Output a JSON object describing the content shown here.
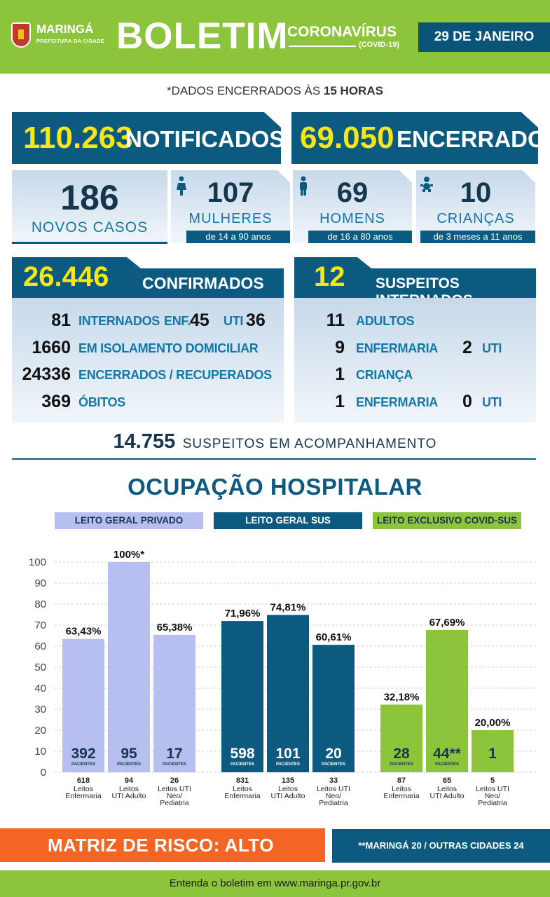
{
  "header": {
    "city": "MARINGÁ",
    "city_sub": "PREFEITURA DA CIDADE",
    "title": "BOLETIM",
    "corona": "CORONAVÍRUS",
    "covid": "(COVID-19)",
    "date": "29 DE JANEIRO",
    "brand_green": "#8cc43c",
    "brand_blue": "#0d5a80"
  },
  "notice": {
    "prefix": "*DADOS ENCERRADOS ÀS ",
    "hour": "15 HORAS"
  },
  "totals": {
    "notified_value": "110.263",
    "notified_label": "NOTIFICADOS",
    "closed_value": "69.050",
    "closed_label": "ENCERRADOS"
  },
  "new_cases": {
    "value": "186",
    "label": "NOVOS CASOS",
    "women": {
      "value": "107",
      "label": "MULHERES",
      "range": "de 14 a 90 anos",
      "icon": "woman-icon"
    },
    "men": {
      "value": "69",
      "label": "HOMENS",
      "range": "de 16 a 80 anos",
      "icon": "man-icon"
    },
    "children": {
      "value": "10",
      "label": "CRIANÇAS",
      "range": "de 3 meses a 11 anos",
      "icon": "baby-icon"
    }
  },
  "confirmed": {
    "value": "26.446",
    "label": "CONFIRMADOS",
    "hospitalized": {
      "value": "81",
      "label": "INTERNADOS",
      "enf_label": "ENF.",
      "enf_value": "45",
      "uti_label": "UTI",
      "uti_value": "36"
    },
    "isolation": {
      "value": "1660",
      "label": "EM ISOLAMENTO DOMICILIAR"
    },
    "recovered": {
      "value": "24336",
      "label": "ENCERRADOS / RECUPERADOS"
    },
    "deaths": {
      "value": "369",
      "label": "ÓBITOS"
    }
  },
  "suspects_hospitalized": {
    "value": "12",
    "label": "SUSPEITOS INTERNADOS",
    "adults": {
      "value": "11",
      "label": "ADULTOS"
    },
    "adults_ward": {
      "value": "9",
      "label": "ENFERMARIA",
      "uti_value": "2",
      "uti_label": "UTI"
    },
    "child": {
      "value": "1",
      "label": "CRIANÇA"
    },
    "child_ward": {
      "value": "1",
      "label": "ENFERMARIA",
      "uti_value": "0",
      "uti_label": "UTI"
    }
  },
  "monitoring": {
    "value": "14.755",
    "label": "SUSPEITOS EM ACOMPANHAMENTO"
  },
  "occupancy_title": "OCUPAÇÃO HOSPITALAR",
  "chart_data": {
    "type": "bar",
    "title": "OCUPAÇÃO HOSPITALAR",
    "ylim": [
      0,
      100
    ],
    "yticks": [
      "0",
      "10",
      "20",
      "30",
      "40",
      "50",
      "60",
      "70",
      "80",
      "90",
      "100"
    ],
    "grid": true,
    "patients_label": "PACIENTES",
    "groups": [
      {
        "name": "LEITO GERAL PRIVADO",
        "color": "#b6bff0",
        "text_color": "#15374d",
        "bars": [
          {
            "value": 63.43,
            "label": "63,43%",
            "patients": "392",
            "beds": "618",
            "category": [
              "Leitos",
              "Enfermaria"
            ]
          },
          {
            "value": 100,
            "label": "100%*",
            "patients": "95",
            "beds": "94",
            "category": [
              "Leitos",
              "UTI Adulto"
            ]
          },
          {
            "value": 65.38,
            "label": "65,38%",
            "patients": "17",
            "beds": "26",
            "category": [
              "Leitos UTI",
              "Neo/",
              "Pediatria"
            ]
          }
        ]
      },
      {
        "name": "LEITO GERAL SUS",
        "color": "#0d5a80",
        "text_color": "#ffffff",
        "bars": [
          {
            "value": 71.96,
            "label": "71,96%",
            "patients": "598",
            "beds": "831",
            "category": [
              "Leitos",
              "Enfermaria"
            ]
          },
          {
            "value": 74.81,
            "label": "74,81%",
            "patients": "101",
            "beds": "135",
            "category": [
              "Leitos",
              "UTI Adulto"
            ]
          },
          {
            "value": 60.61,
            "label": "60,61%",
            "patients": "20",
            "beds": "33",
            "category": [
              "Leitos UTI",
              "Neo/",
              "Pediatria"
            ]
          }
        ]
      },
      {
        "name": "LEITO EXCLUSIVO COVID-SUS",
        "color": "#8cc43c",
        "text_color": "#15374d",
        "bars": [
          {
            "value": 32.18,
            "label": "32,18%",
            "patients": "28",
            "beds": "87",
            "category": [
              "Leitos",
              "Enfermaria"
            ]
          },
          {
            "value": 67.69,
            "label": "67,69%",
            "patients": "44**",
            "beds": "65",
            "category": [
              "Leitos",
              "UTI Adulto"
            ]
          },
          {
            "value": 20.0,
            "label": "20,00%",
            "patients": "1",
            "beds": "5",
            "category": [
              "Leitos UTI",
              "Neo/",
              "Pediatria"
            ],
            "no_patients_label": true
          }
        ]
      }
    ]
  },
  "risk": {
    "label": "MATRIZ DE RISCO: ALTO",
    "color": "#f26522"
  },
  "cities_note": "**MARINGÁ 20 / OUTRAS CIDADES 24",
  "footer": "Entenda o boletim em www.maringa.pr.gov.br"
}
